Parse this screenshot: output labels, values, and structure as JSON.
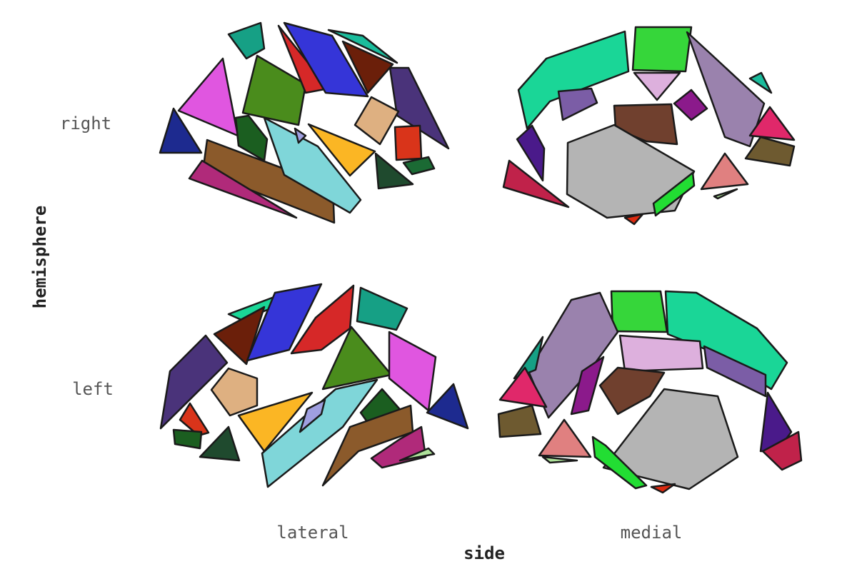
{
  "chart_data": {
    "type": "other",
    "xlabel": "side",
    "ylabel": "hemisphere",
    "x_categories": [
      "lateral",
      "medial"
    ],
    "y_categories": [
      "right",
      "left"
    ],
    "grid": false,
    "legend": "none",
    "panels": [
      {
        "hemisphere": "right",
        "side": "lateral",
        "region_colors": [
          "#16a085",
          "#e056e0",
          "#1d2a8f",
          "#4a8c1c",
          "#d62828",
          "#3535d8",
          "#1abc9c",
          "#6b1f0a",
          "#4a337a",
          "#1b5e20",
          "#8b5a2b",
          "#b02a7a",
          "#7fd6d9",
          "#9f9fe0",
          "#fbb624",
          "#deb081",
          "#d9341a",
          "#1f4a2e",
          "#1b6a34"
        ]
      },
      {
        "hemisphere": "right",
        "side": "medial",
        "region_colors": [
          "#1ad697",
          "#36d63a",
          "#9a82ad",
          "#7b5da6",
          "#ddb0dd",
          "#8b1a8b",
          "#1abc9c",
          "#70402e",
          "#e0286a",
          "#4a1a8a",
          "#c0224a",
          "#6e5a30",
          "#b4b4b4",
          "#e08080",
          "#22dd33",
          "#aee29a",
          "#dd2a10"
        ]
      },
      {
        "hemisphere": "left",
        "side": "lateral",
        "region_colors": [
          "#1ad697",
          "#6b1f0a",
          "#3535d8",
          "#d62828",
          "#16a085",
          "#4a337a",
          "#4a8c1c",
          "#e056e0",
          "#1d2a8f",
          "#deb081",
          "#d9341a",
          "#1b5e20",
          "#1f4a2e",
          "#fbb624",
          "#7fd6d9",
          "#9f9fe0",
          "#1b5e20",
          "#8b5a2b",
          "#b02a7a",
          "#aee29a"
        ]
      },
      {
        "hemisphere": "left",
        "side": "medial",
        "region_colors": [
          "#36d63a",
          "#1ad697",
          "#9a82ad",
          "#16a085",
          "#ddb0dd",
          "#7b5da6",
          "#8b1a8b",
          "#70402e",
          "#e0286a",
          "#6e5a30",
          "#e08080",
          "#aee29a",
          "#b4b4b4",
          "#22dd33",
          "#4a1a8a",
          "#c0224a",
          "#dd2a10"
        ]
      }
    ]
  }
}
